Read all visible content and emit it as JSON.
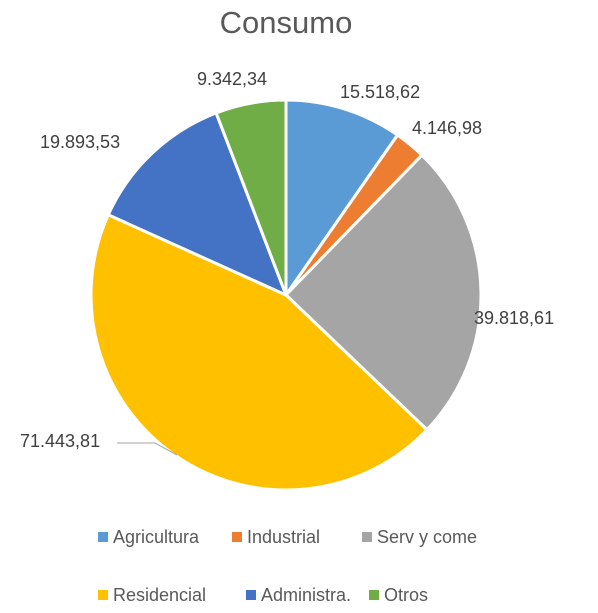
{
  "chart_data": {
    "type": "pie",
    "title": "Consumo",
    "categories": [
      "Agricultura",
      "Industrial",
      "Serv y come",
      "Residencial",
      "Administra.",
      "Otros"
    ],
    "values": [
      15518.62,
      4146.98,
      39818.61,
      71443.81,
      19893.53,
      9342.34
    ],
    "value_labels": [
      "15.518,62",
      "4.146,98",
      "39.818,61",
      "71.443,81",
      "19.893,53",
      "9.342,34"
    ],
    "colors": [
      "#5b9bd5",
      "#ed7d31",
      "#a5a5a5",
      "#ffc000",
      "#4472c4",
      "#70ad47"
    ],
    "legend_position": "bottom"
  }
}
